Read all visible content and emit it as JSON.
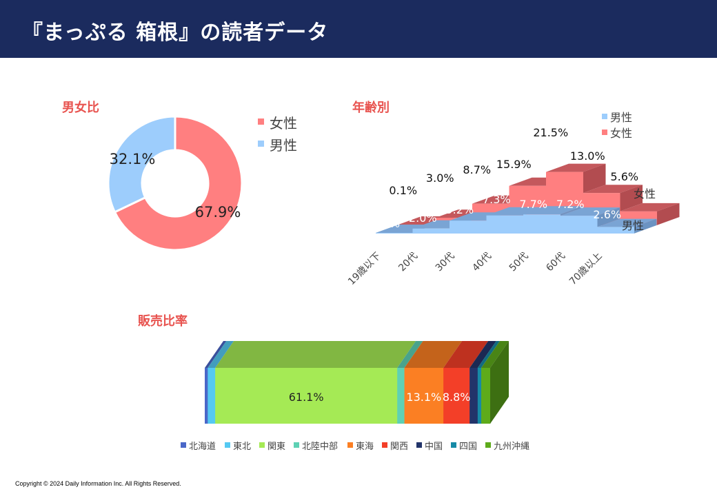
{
  "header": {
    "title": "『まっぷる 箱根』の読者データ",
    "background": "#1b2b5e"
  },
  "footer": {
    "copyright": "Copyright © 2024 Daily Information Inc. All Rights Reserved."
  },
  "colors": {
    "female": "#ff7f80",
    "male": "#9dcdfc",
    "section_title": "#e8534f"
  },
  "chart_data": [
    {
      "id": "gender",
      "type": "pie",
      "title": "男女比",
      "donut": true,
      "legend_position": "right",
      "slices": [
        {
          "label": "女性",
          "value": 67.9,
          "value_label": "67.9%",
          "color": "#ff7f80"
        },
        {
          "label": "男性",
          "value": 32.1,
          "value_label": "32.1%",
          "color": "#9dcdfc"
        }
      ]
    },
    {
      "id": "age",
      "type": "area",
      "title": "年齢別",
      "style": "3d",
      "legend_position": "top-right",
      "categories": [
        "19歳以下",
        "20代",
        "30代",
        "40代",
        "50代",
        "60代",
        "70歳以上"
      ],
      "series": [
        {
          "name": "男性",
          "row_label": "男性",
          "color": "#9dcdfc",
          "values": [
            0.1,
            2.0,
            5.2,
            7.3,
            7.7,
            7.2,
            2.6
          ],
          "value_labels": [
            "0.1%",
            "2.0%",
            "5.2%",
            "7.3%",
            "7.7%",
            "7.2%",
            "2.6%"
          ]
        },
        {
          "name": "女性",
          "row_label": "女性",
          "color": "#ff7f80",
          "values": [
            0.1,
            3.0,
            8.7,
            15.9,
            21.5,
            13.0,
            5.6
          ],
          "value_labels": [
            "0.1%",
            "3.0%",
            "8.7%",
            "15.9%",
            "21.5%",
            "13.0%",
            "5.6%"
          ]
        }
      ]
    },
    {
      "id": "region",
      "type": "bar",
      "title": "販売比率",
      "orientation": "horizontal",
      "stacked": "100%",
      "style": "3d",
      "legend_position": "bottom",
      "series": [
        {
          "name": "北海道",
          "value": 1.0,
          "value_label": "",
          "color": "#4a67c8"
        },
        {
          "name": "東北",
          "value": 2.5,
          "value_label": "",
          "color": "#55c9f2"
        },
        {
          "name": "関東",
          "value": 61.1,
          "value_label": "61.1%",
          "color": "#a5ea55"
        },
        {
          "name": "北陸中部",
          "value": 2.4,
          "value_label": "",
          "color": "#5ed1b4"
        },
        {
          "name": "東海",
          "value": 13.1,
          "value_label": "13.1%",
          "color": "#fb7f23"
        },
        {
          "name": "関西",
          "value": 8.8,
          "value_label": "8.8%",
          "color": "#f33f28"
        },
        {
          "name": "中国",
          "value": 2.7,
          "value_label": "",
          "color": "#22346a"
        },
        {
          "name": "四国",
          "value": 1.2,
          "value_label": "",
          "color": "#168aa6"
        },
        {
          "name": "九州沖縄",
          "value": 3.0,
          "value_label": "",
          "color": "#5eab1b"
        }
      ]
    }
  ]
}
